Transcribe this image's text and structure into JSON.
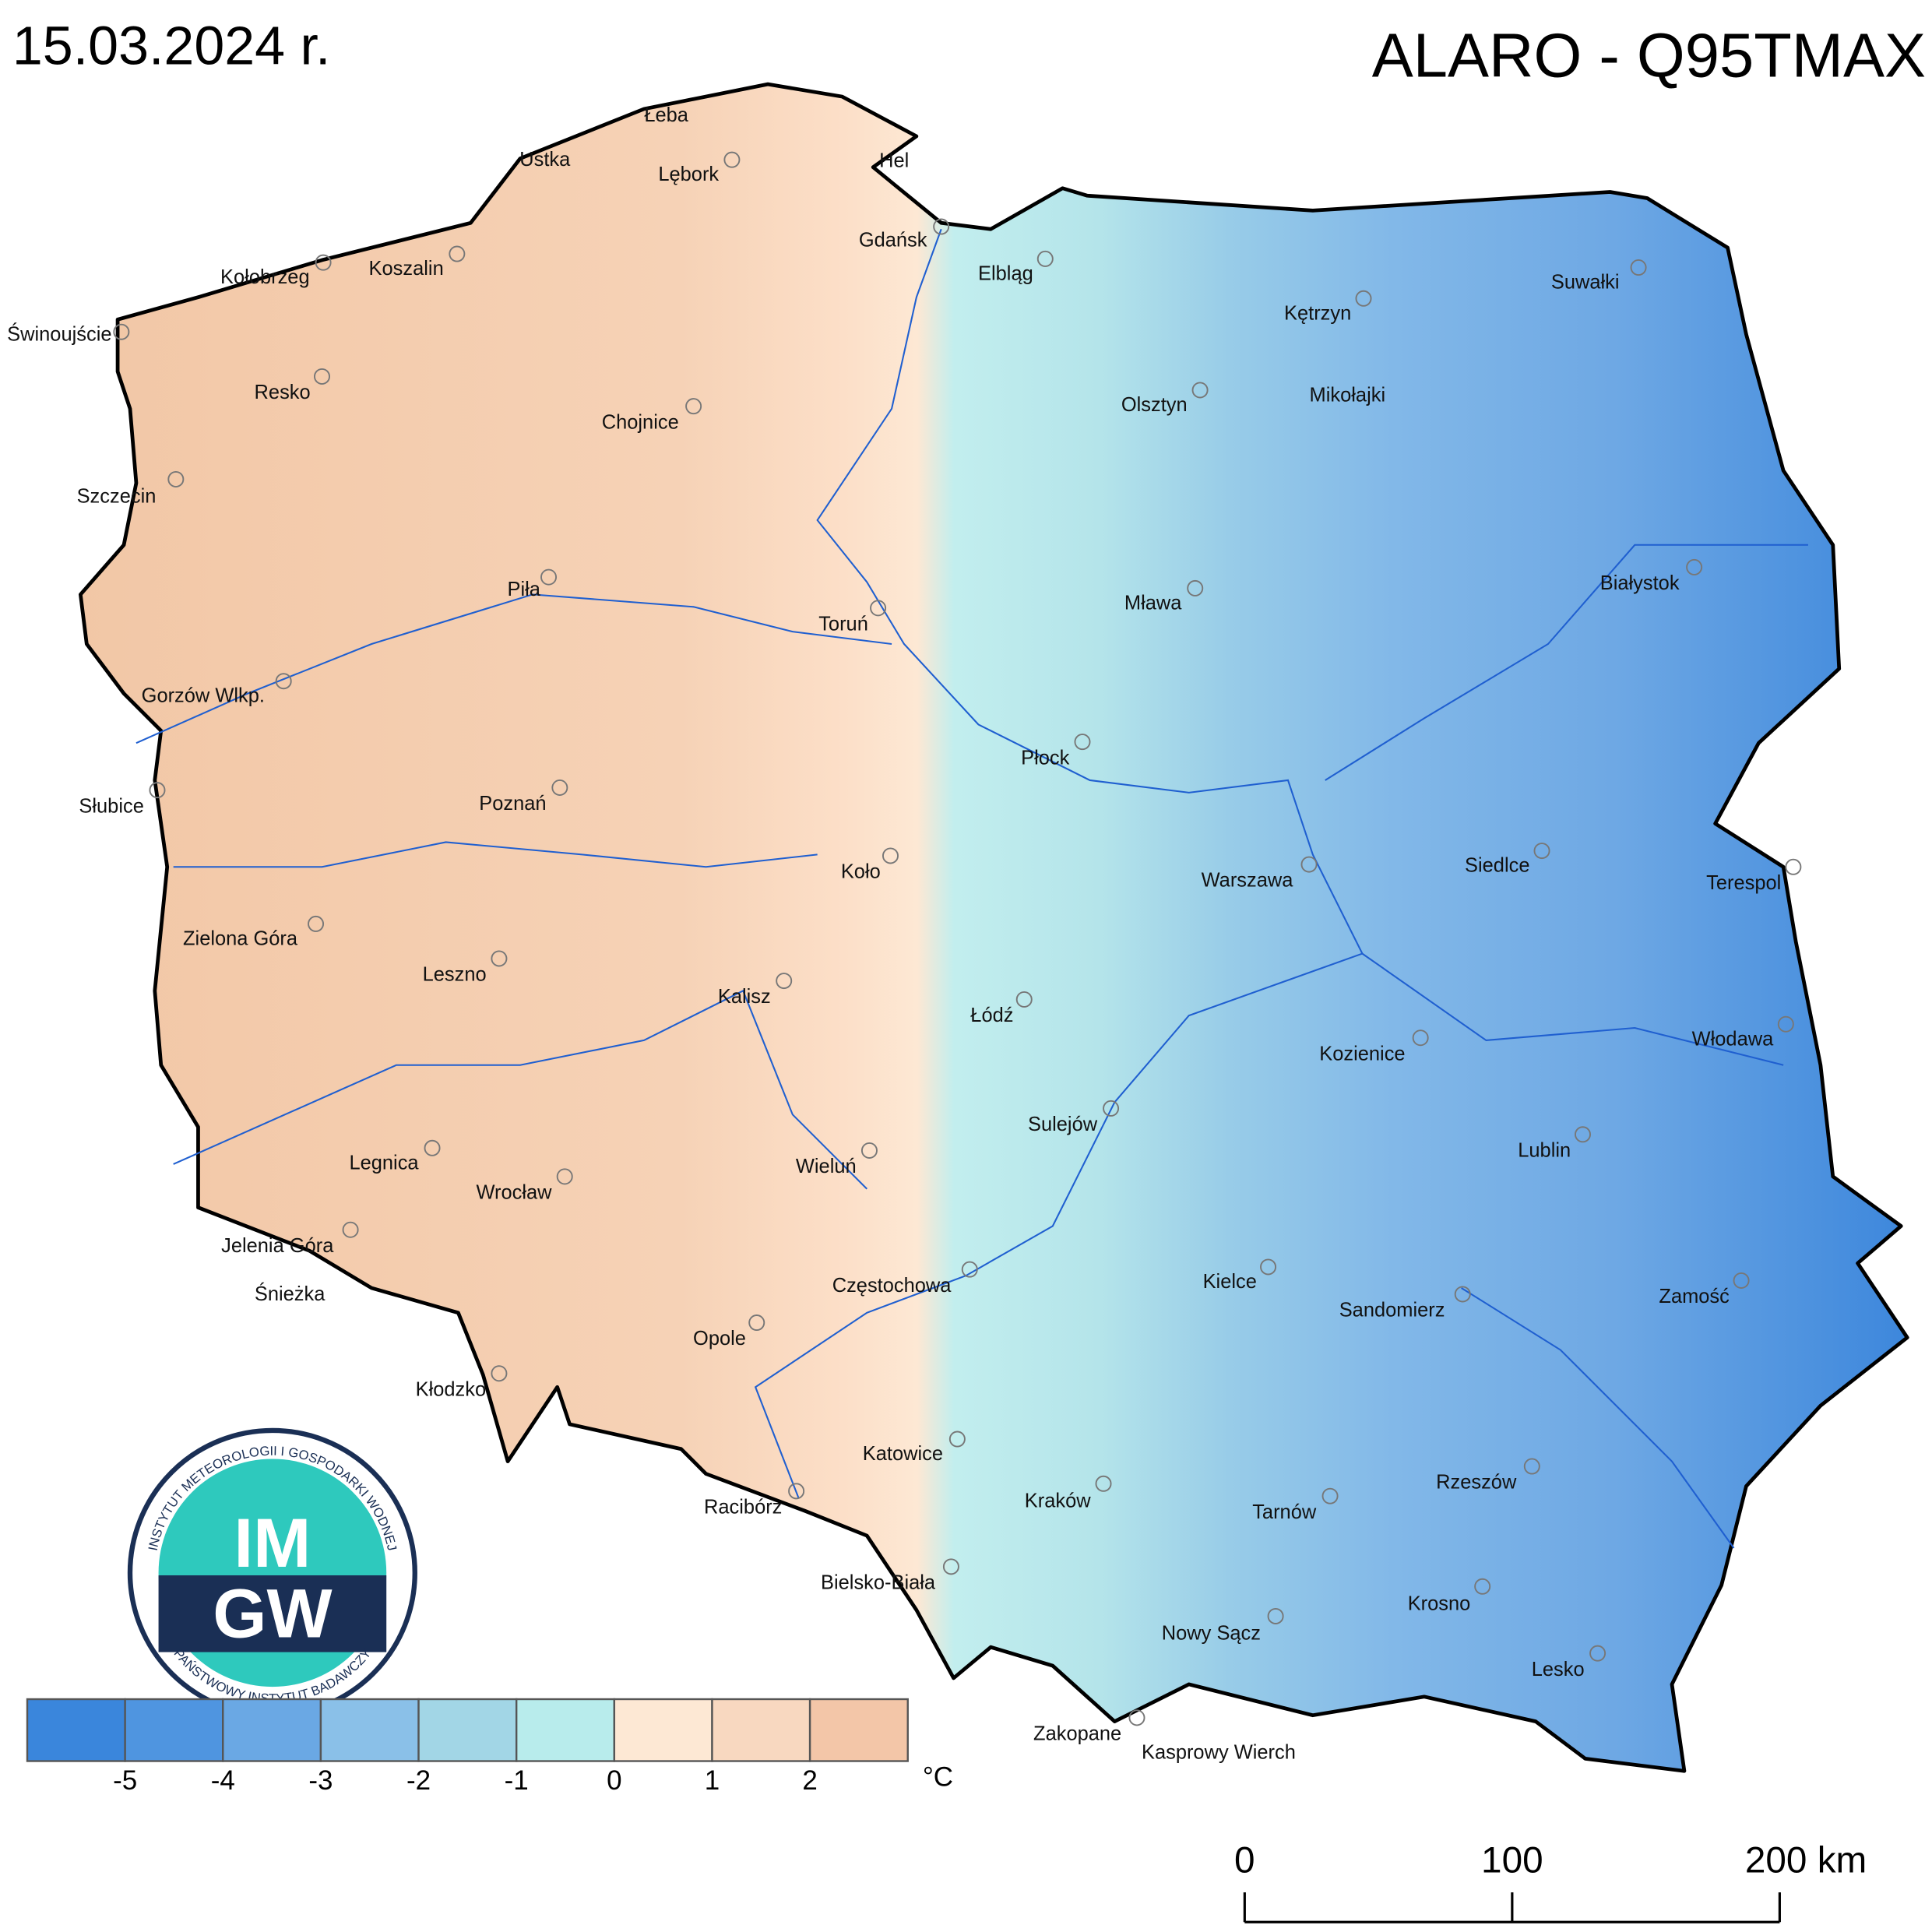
{
  "header": {
    "date": "15.03.2024 r.",
    "title": "ALARO - Q95TMAX"
  },
  "legend": {
    "colors": [
      "#3a86dc",
      "#4f95e0",
      "#6aa8e4",
      "#8ac0e8",
      "#a2d6e6",
      "#b8ecec",
      "#fde8d4",
      "#f8d8c0",
      "#f3c6a8"
    ],
    "ticks": [
      -5,
      -4,
      -3,
      -2,
      -1,
      0,
      1,
      2
    ],
    "unit": "°C"
  },
  "cities": [
    "Łeba",
    "Ustka",
    "Lębork",
    "Hel",
    "Gdańsk",
    "Elbląg",
    "Kołobrzeg",
    "Koszalin",
    "Świnoujście",
    "Kętrzyn",
    "Suwałki",
    "Resko",
    "Chojnice",
    "Olsztyn",
    "Mikołajki",
    "Szczecin",
    "Piła",
    "Mława",
    "Białystok",
    "Toruń",
    "Gorzów Wlkp.",
    "Płock",
    "Słubice",
    "Poznań",
    "Siedlce",
    "Koło",
    "Warszawa",
    "Terespol",
    "Zielona Góra",
    "Leszno",
    "Kalisz",
    "Łódź",
    "Włodawa",
    "Kozienice",
    "Sulejów",
    "Lublin",
    "Legnica",
    "Wieluń",
    "Wrocław",
    "Jelenia Góra",
    "Kielce",
    "Częstochowa",
    "Zamość",
    "Śnieżka",
    "Sandomierz",
    "Opole",
    "Kłodzko",
    "Katowice",
    "Rzeszów",
    "Racibórz",
    "Kraków",
    "Tarnów",
    "Bielsko-Biała",
    "Krosno",
    "Nowy Sącz",
    "Lesko",
    "Zakopane",
    "Kasprowy Wierch"
  ],
  "scale_bar": {
    "ticks": [
      0,
      100,
      {
        "value": 200,
        "label": "200 km"
      }
    ]
  },
  "logo": {
    "top": "IM",
    "bottom": "GW",
    "ring_top": "INSTYTUT METEOROLOGII I GOSPODARKI WODNEJ",
    "ring_bottom": "PAŃSTWOWY INSTYTUT BADAWCZY"
  }
}
